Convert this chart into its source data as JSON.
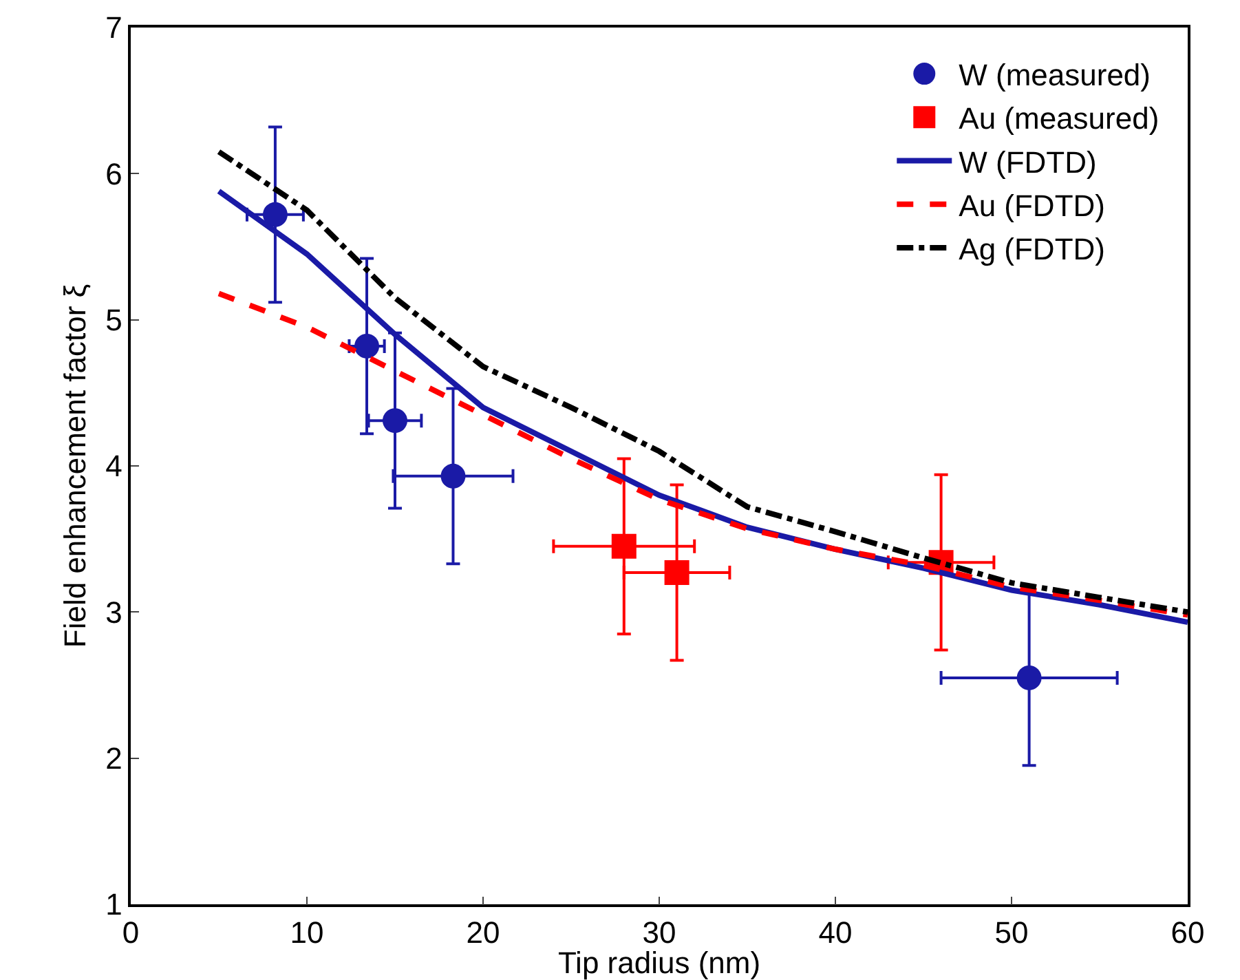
{
  "chart_data": {
    "type": "scatter",
    "xlabel": "Tip radius (nm)",
    "ylabel": "Field enhancement factor ξ",
    "xlim": [
      0,
      60
    ],
    "xticks": [
      0,
      10,
      20,
      30,
      40,
      50,
      60
    ],
    "ylim": [
      1,
      7
    ],
    "yticks": [
      1,
      2,
      3,
      4,
      5,
      6,
      7
    ],
    "grid": false,
    "legend": "top right",
    "series": [
      {
        "name": "W (measured)",
        "marker": "circle",
        "color": "#1a1aa6",
        "x": [
          8.2,
          13.4,
          15,
          18.3,
          51
        ],
        "values": [
          5.72,
          4.82,
          4.31,
          3.93,
          2.55
        ],
        "errors": [
          0.6,
          0.6,
          0.6,
          0.6,
          0.6
        ],
        "xerrors": [
          1.6,
          1,
          1.5,
          3.4,
          5
        ]
      },
      {
        "name": "Au (measured)",
        "marker": "square",
        "color": "#ff0000",
        "x": [
          28,
          31,
          46
        ],
        "values": [
          3.45,
          3.27,
          3.34
        ],
        "errors": [
          0.6,
          0.6,
          0.6
        ],
        "xerrors": [
          4,
          3,
          3
        ]
      },
      {
        "name": "W (FDTD)",
        "type": "line",
        "line_style": "solid",
        "color": "#1a1aa6",
        "x": [
          5,
          10,
          15,
          20,
          25,
          30,
          35,
          40,
          45,
          50,
          55,
          60
        ],
        "values": [
          5.88,
          5.45,
          4.9,
          4.4,
          4.1,
          3.8,
          3.58,
          3.43,
          3.3,
          3.15,
          3.05,
          2.93
        ]
      },
      {
        "name": "Au (FDTD)",
        "type": "line",
        "line_style": "dashed",
        "color": "#ff0000",
        "x": [
          5,
          10,
          15,
          20,
          25,
          30,
          35,
          40,
          45,
          50,
          55,
          60
        ],
        "values": [
          5.18,
          4.95,
          4.65,
          4.35,
          4.05,
          3.77,
          3.57,
          3.43,
          3.32,
          3.17,
          3.08,
          2.98
        ]
      },
      {
        "name": "Ag (FDTD)",
        "type": "line",
        "line_style": "dashdot",
        "color": "#000000",
        "x": [
          5,
          10,
          15,
          20,
          25,
          30,
          35,
          40,
          45,
          50,
          55,
          60
        ],
        "values": [
          6.15,
          5.75,
          5.15,
          4.68,
          4.4,
          4.1,
          3.72,
          3.55,
          3.37,
          3.2,
          3.1,
          3.0
        ]
      }
    ]
  }
}
